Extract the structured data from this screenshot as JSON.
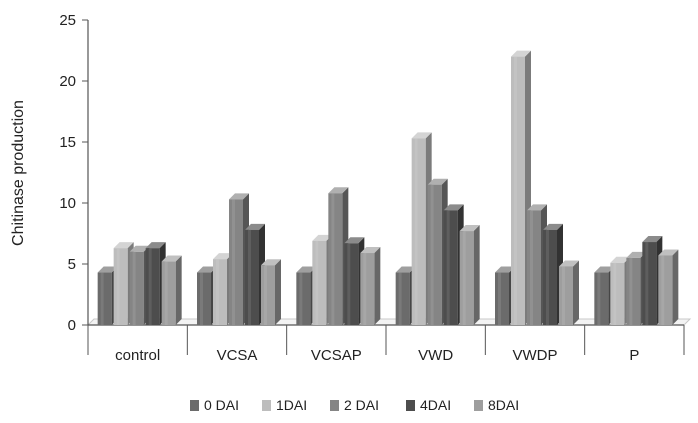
{
  "chart_data": {
    "type": "bar",
    "style": "3d-clustered-column",
    "title": "",
    "xlabel": "",
    "ylabel": "Chitinase production",
    "ylim": [
      0,
      25
    ],
    "yticks": [
      0,
      5,
      10,
      15,
      20,
      25
    ],
    "grid": false,
    "legend_position": "bottom",
    "categories": [
      "control",
      "VCSA",
      "VCSAP",
      "VWD",
      "VWDP",
      "P"
    ],
    "series": [
      {
        "name": "0 DAI",
        "color": "#6b6b6b",
        "values": [
          4.3,
          4.3,
          4.3,
          4.3,
          4.3,
          4.3
        ]
      },
      {
        "name": "1DAI",
        "color": "#bdbdbd",
        "values": [
          6.3,
          5.4,
          6.9,
          15.3,
          22.0,
          5.1
        ]
      },
      {
        "name": "2 DAI",
        "color": "#858585",
        "values": [
          6.0,
          10.3,
          10.8,
          11.5,
          9.4,
          5.5
        ]
      },
      {
        "name": "4DAI",
        "color": "#4d4d4d",
        "values": [
          6.3,
          7.8,
          6.7,
          9.4,
          7.8,
          6.8
        ]
      },
      {
        "name": "8DAI",
        "color": "#9e9e9e",
        "values": [
          5.2,
          4.9,
          5.9,
          7.7,
          4.8,
          5.7
        ]
      }
    ]
  }
}
